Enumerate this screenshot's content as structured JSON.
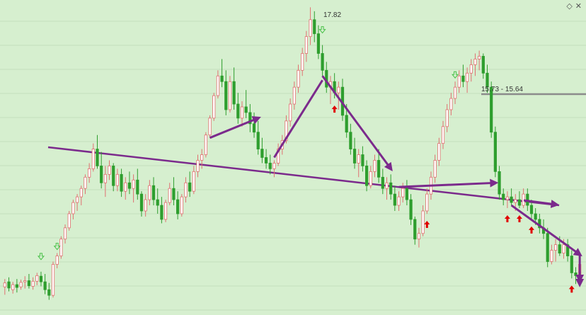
{
  "chart_data": {
    "type": "candlestick",
    "title": "",
    "xlabel": "",
    "ylabel": "",
    "grid": true,
    "colors": {
      "background": "#d6efcf",
      "grid": "#c4dfbd",
      "bullish_body": "#ffffff",
      "bullish_wick": "#e07070",
      "bearish": "#2e9e2e",
      "pattern_lines": "#7b2a8c",
      "level_line": "#8c8c8c",
      "signal_up_arrow": "#e00000",
      "signal_marker": "#48c048"
    },
    "annotations": {
      "high_label": "17.82",
      "range_label": "15.73 - 15.64"
    },
    "candles": [
      {
        "o": 12.85,
        "h": 12.99,
        "l": 12.71,
        "c": 12.92
      },
      {
        "o": 12.94,
        "h": 13.02,
        "l": 12.77,
        "c": 12.83
      },
      {
        "o": 12.8,
        "h": 12.94,
        "l": 12.73,
        "c": 12.89
      },
      {
        "o": 12.89,
        "h": 12.99,
        "l": 12.75,
        "c": 12.84
      },
      {
        "o": 12.85,
        "h": 12.98,
        "l": 12.8,
        "c": 12.93
      },
      {
        "o": 12.94,
        "h": 13.04,
        "l": 12.82,
        "c": 12.96
      },
      {
        "o": 12.96,
        "h": 13.08,
        "l": 12.82,
        "c": 12.87
      },
      {
        "o": 12.86,
        "h": 13.02,
        "l": 12.8,
        "c": 12.95
      },
      {
        "o": 12.95,
        "h": 13.1,
        "l": 12.88,
        "c": 13.05
      },
      {
        "o": 13.04,
        "h": 13.12,
        "l": 12.86,
        "c": 12.94
      },
      {
        "o": 12.94,
        "h": 13.08,
        "l": 12.72,
        "c": 12.8
      },
      {
        "o": 12.8,
        "h": 12.92,
        "l": 12.62,
        "c": 12.7
      },
      {
        "o": 12.7,
        "h": 13.3,
        "l": 12.66,
        "c": 13.25
      },
      {
        "o": 13.25,
        "h": 13.45,
        "l": 13.18,
        "c": 13.4
      },
      {
        "o": 13.4,
        "h": 13.75,
        "l": 13.35,
        "c": 13.7
      },
      {
        "o": 13.7,
        "h": 13.96,
        "l": 13.62,
        "c": 13.9
      },
      {
        "o": 13.9,
        "h": 14.2,
        "l": 13.85,
        "c": 14.15
      },
      {
        "o": 14.15,
        "h": 14.4,
        "l": 14.05,
        "c": 14.35
      },
      {
        "o": 14.35,
        "h": 14.5,
        "l": 14.2,
        "c": 14.45
      },
      {
        "o": 14.45,
        "h": 14.65,
        "l": 14.3,
        "c": 14.6
      },
      {
        "o": 14.6,
        "h": 14.85,
        "l": 14.5,
        "c": 14.8
      },
      {
        "o": 14.8,
        "h": 15.05,
        "l": 14.7,
        "c": 14.95
      },
      {
        "o": 14.95,
        "h": 15.4,
        "l": 14.9,
        "c": 15.3
      },
      {
        "o": 15.3,
        "h": 15.55,
        "l": 14.95,
        "c": 15.0
      },
      {
        "o": 15.0,
        "h": 15.25,
        "l": 14.6,
        "c": 14.7
      },
      {
        "o": 14.7,
        "h": 15.0,
        "l": 14.45,
        "c": 14.85
      },
      {
        "o": 14.85,
        "h": 15.1,
        "l": 14.75,
        "c": 15.0
      },
      {
        "o": 15.0,
        "h": 15.05,
        "l": 14.55,
        "c": 14.65
      },
      {
        "o": 14.65,
        "h": 14.95,
        "l": 14.55,
        "c": 14.85
      },
      {
        "o": 14.85,
        "h": 14.95,
        "l": 14.45,
        "c": 14.55
      },
      {
        "o": 14.55,
        "h": 14.8,
        "l": 14.4,
        "c": 14.7
      },
      {
        "o": 14.7,
        "h": 14.9,
        "l": 14.5,
        "c": 14.6
      },
      {
        "o": 14.6,
        "h": 14.85,
        "l": 14.35,
        "c": 14.75
      },
      {
        "o": 14.75,
        "h": 14.95,
        "l": 14.4,
        "c": 14.5
      },
      {
        "o": 14.5,
        "h": 14.55,
        "l": 14.1,
        "c": 14.2
      },
      {
        "o": 14.2,
        "h": 14.5,
        "l": 14.1,
        "c": 14.4
      },
      {
        "o": 14.4,
        "h": 14.75,
        "l": 14.3,
        "c": 14.65
      },
      {
        "o": 14.65,
        "h": 14.8,
        "l": 14.3,
        "c": 14.4
      },
      {
        "o": 14.4,
        "h": 14.6,
        "l": 14.15,
        "c": 14.3
      },
      {
        "o": 14.3,
        "h": 14.45,
        "l": 13.98,
        "c": 14.05
      },
      {
        "o": 14.05,
        "h": 14.4,
        "l": 14.0,
        "c": 14.35
      },
      {
        "o": 14.35,
        "h": 14.7,
        "l": 14.3,
        "c": 14.6
      },
      {
        "o": 14.6,
        "h": 14.8,
        "l": 14.3,
        "c": 14.4
      },
      {
        "o": 14.4,
        "h": 14.55,
        "l": 14.05,
        "c": 14.15
      },
      {
        "o": 14.15,
        "h": 14.5,
        "l": 14.1,
        "c": 14.45
      },
      {
        "o": 14.45,
        "h": 14.8,
        "l": 14.35,
        "c": 14.7
      },
      {
        "o": 14.7,
        "h": 14.9,
        "l": 14.45,
        "c": 14.55
      },
      {
        "o": 14.55,
        "h": 15.0,
        "l": 14.5,
        "c": 14.9
      },
      {
        "o": 14.9,
        "h": 15.2,
        "l": 14.8,
        "c": 15.1
      },
      {
        "o": 15.1,
        "h": 15.3,
        "l": 14.95,
        "c": 15.2
      },
      {
        "o": 15.2,
        "h": 15.6,
        "l": 15.15,
        "c": 15.55
      },
      {
        "o": 15.55,
        "h": 15.9,
        "l": 15.5,
        "c": 15.85
      },
      {
        "o": 15.85,
        "h": 16.3,
        "l": 15.8,
        "c": 16.25
      },
      {
        "o": 16.25,
        "h": 16.7,
        "l": 16.2,
        "c": 16.6
      },
      {
        "o": 16.6,
        "h": 16.9,
        "l": 16.4,
        "c": 16.5
      },
      {
        "o": 16.5,
        "h": 16.7,
        "l": 15.9,
        "c": 16.0
      },
      {
        "o": 16.0,
        "h": 16.6,
        "l": 15.95,
        "c": 16.5
      },
      {
        "o": 16.5,
        "h": 16.75,
        "l": 16.0,
        "c": 16.1
      },
      {
        "o": 16.1,
        "h": 16.3,
        "l": 15.75,
        "c": 15.85
      },
      {
        "o": 15.85,
        "h": 16.15,
        "l": 15.7,
        "c": 16.05
      },
      {
        "o": 16.05,
        "h": 16.35,
        "l": 15.85,
        "c": 15.95
      },
      {
        "o": 15.95,
        "h": 16.1,
        "l": 15.6,
        "c": 15.75
      },
      {
        "o": 15.75,
        "h": 15.95,
        "l": 15.5,
        "c": 15.6
      },
      {
        "o": 15.6,
        "h": 15.8,
        "l": 15.2,
        "c": 15.3
      },
      {
        "o": 15.3,
        "h": 15.5,
        "l": 15.05,
        "c": 15.15
      },
      {
        "o": 15.15,
        "h": 15.3,
        "l": 14.95,
        "c": 15.05
      },
      {
        "o": 15.05,
        "h": 15.2,
        "l": 14.85,
        "c": 14.95
      },
      {
        "o": 14.95,
        "h": 15.1,
        "l": 14.8,
        "c": 15.05
      },
      {
        "o": 15.05,
        "h": 15.4,
        "l": 15.0,
        "c": 15.3
      },
      {
        "o": 15.3,
        "h": 15.55,
        "l": 15.2,
        "c": 15.45
      },
      {
        "o": 15.45,
        "h": 15.9,
        "l": 15.4,
        "c": 15.8
      },
      {
        "o": 15.8,
        "h": 16.2,
        "l": 15.7,
        "c": 16.1
      },
      {
        "o": 16.1,
        "h": 16.5,
        "l": 16.0,
        "c": 16.4
      },
      {
        "o": 16.4,
        "h": 16.8,
        "l": 16.3,
        "c": 16.7
      },
      {
        "o": 16.7,
        "h": 17.1,
        "l": 16.6,
        "c": 17.0
      },
      {
        "o": 17.0,
        "h": 17.4,
        "l": 16.85,
        "c": 17.3
      },
      {
        "o": 17.3,
        "h": 17.82,
        "l": 17.15,
        "c": 17.6
      },
      {
        "o": 17.6,
        "h": 17.75,
        "l": 17.2,
        "c": 17.35
      },
      {
        "o": 17.35,
        "h": 17.5,
        "l": 16.9,
        "c": 17.0
      },
      {
        "o": 17.0,
        "h": 17.15,
        "l": 16.6,
        "c": 16.7
      },
      {
        "o": 16.7,
        "h": 16.85,
        "l": 16.3,
        "c": 16.4
      },
      {
        "o": 16.4,
        "h": 16.6,
        "l": 16.1,
        "c": 16.5
      },
      {
        "o": 16.5,
        "h": 16.65,
        "l": 16.2,
        "c": 16.3
      },
      {
        "o": 16.3,
        "h": 16.5,
        "l": 16.0,
        "c": 16.4
      },
      {
        "o": 16.4,
        "h": 16.55,
        "l": 15.8,
        "c": 15.9
      },
      {
        "o": 15.9,
        "h": 16.1,
        "l": 15.5,
        "c": 15.6
      },
      {
        "o": 15.6,
        "h": 15.75,
        "l": 15.2,
        "c": 15.3
      },
      {
        "o": 15.3,
        "h": 15.5,
        "l": 14.95,
        "c": 15.05
      },
      {
        "o": 15.05,
        "h": 15.3,
        "l": 14.8,
        "c": 15.2
      },
      {
        "o": 15.2,
        "h": 15.35,
        "l": 14.9,
        "c": 15.0
      },
      {
        "o": 15.0,
        "h": 15.1,
        "l": 14.55,
        "c": 14.65
      },
      {
        "o": 14.65,
        "h": 15.0,
        "l": 14.6,
        "c": 14.9
      },
      {
        "o": 14.9,
        "h": 15.2,
        "l": 14.8,
        "c": 15.1
      },
      {
        "o": 15.1,
        "h": 15.3,
        "l": 14.7,
        "c": 14.8
      },
      {
        "o": 14.8,
        "h": 14.95,
        "l": 14.5,
        "c": 14.6
      },
      {
        "o": 14.6,
        "h": 14.8,
        "l": 14.4,
        "c": 14.7
      },
      {
        "o": 14.7,
        "h": 14.85,
        "l": 14.4,
        "c": 14.5
      },
      {
        "o": 14.5,
        "h": 14.65,
        "l": 14.2,
        "c": 14.3
      },
      {
        "o": 14.3,
        "h": 14.55,
        "l": 14.2,
        "c": 14.45
      },
      {
        "o": 14.45,
        "h": 14.7,
        "l": 14.35,
        "c": 14.6
      },
      {
        "o": 14.6,
        "h": 14.75,
        "l": 14.3,
        "c": 14.4
      },
      {
        "o": 14.4,
        "h": 14.5,
        "l": 13.95,
        "c": 14.05
      },
      {
        "o": 14.05,
        "h": 14.1,
        "l": 13.6,
        "c": 13.7
      },
      {
        "o": 13.7,
        "h": 13.9,
        "l": 13.55,
        "c": 13.8
      },
      {
        "o": 13.8,
        "h": 14.3,
        "l": 13.75,
        "c": 14.2
      },
      {
        "o": 14.2,
        "h": 14.6,
        "l": 14.15,
        "c": 14.5
      },
      {
        "o": 14.5,
        "h": 14.9,
        "l": 14.4,
        "c": 14.8
      },
      {
        "o": 14.8,
        "h": 15.2,
        "l": 14.7,
        "c": 15.1
      },
      {
        "o": 15.1,
        "h": 15.5,
        "l": 15.0,
        "c": 15.4
      },
      {
        "o": 15.4,
        "h": 15.8,
        "l": 15.3,
        "c": 15.7
      },
      {
        "o": 15.7,
        "h": 16.1,
        "l": 15.6,
        "c": 16.0
      },
      {
        "o": 16.0,
        "h": 16.3,
        "l": 15.9,
        "c": 16.2
      },
      {
        "o": 16.2,
        "h": 16.5,
        "l": 16.1,
        "c": 16.4
      },
      {
        "o": 16.4,
        "h": 16.7,
        "l": 16.3,
        "c": 16.6
      },
      {
        "o": 16.6,
        "h": 16.8,
        "l": 16.4,
        "c": 16.5
      },
      {
        "o": 16.5,
        "h": 16.75,
        "l": 16.3,
        "c": 16.65
      },
      {
        "o": 16.65,
        "h": 16.9,
        "l": 16.5,
        "c": 16.8
      },
      {
        "o": 16.8,
        "h": 17.0,
        "l": 16.6,
        "c": 16.9
      },
      {
        "o": 16.9,
        "h": 17.05,
        "l": 16.7,
        "c": 16.95
      },
      {
        "o": 16.95,
        "h": 17.0,
        "l": 16.55,
        "c": 16.65
      },
      {
        "o": 16.65,
        "h": 16.8,
        "l": 16.3,
        "c": 16.4
      },
      {
        "o": 16.4,
        "h": 16.5,
        "l": 15.5,
        "c": 15.6
      },
      {
        "o": 15.6,
        "h": 15.7,
        "l": 14.8,
        "c": 14.9
      },
      {
        "o": 14.9,
        "h": 15.0,
        "l": 14.4,
        "c": 14.5
      },
      {
        "o": 14.5,
        "h": 14.6,
        "l": 14.3,
        "c": 14.4
      },
      {
        "o": 14.4,
        "h": 14.55,
        "l": 14.25,
        "c": 14.45
      },
      {
        "o": 14.45,
        "h": 14.6,
        "l": 14.3,
        "c": 14.35
      },
      {
        "o": 14.35,
        "h": 14.5,
        "l": 14.2,
        "c": 14.4
      },
      {
        "o": 14.4,
        "h": 14.55,
        "l": 14.25,
        "c": 14.3
      },
      {
        "o": 14.3,
        "h": 14.6,
        "l": 14.25,
        "c": 14.5
      },
      {
        "o": 14.5,
        "h": 14.6,
        "l": 14.2,
        "c": 14.3
      },
      {
        "o": 14.3,
        "h": 14.4,
        "l": 14.05,
        "c": 14.15
      },
      {
        "o": 14.15,
        "h": 14.25,
        "l": 13.95,
        "c": 14.05
      },
      {
        "o": 14.05,
        "h": 14.15,
        "l": 13.8,
        "c": 13.9
      },
      {
        "o": 13.9,
        "h": 14.05,
        "l": 13.7,
        "c": 13.8
      },
      {
        "o": 13.8,
        "h": 13.9,
        "l": 13.2,
        "c": 13.3
      },
      {
        "o": 13.3,
        "h": 13.6,
        "l": 13.25,
        "c": 13.5
      },
      {
        "o": 13.5,
        "h": 13.7,
        "l": 13.3,
        "c": 13.6
      },
      {
        "o": 13.6,
        "h": 13.75,
        "l": 13.4,
        "c": 13.45
      },
      {
        "o": 13.45,
        "h": 13.7,
        "l": 13.35,
        "c": 13.6
      },
      {
        "o": 13.6,
        "h": 13.7,
        "l": 13.3,
        "c": 13.4
      },
      {
        "o": 13.4,
        "h": 13.5,
        "l": 13.0,
        "c": 13.1
      },
      {
        "o": 13.1,
        "h": 13.2,
        "l": 12.9,
        "c": 13.05
      },
      {
        "o": 13.05,
        "h": 13.35,
        "l": 13.0,
        "c": 13.25
      }
    ],
    "signals": {
      "up_arrows": [
        82,
        105,
        125,
        128,
        131,
        141
      ],
      "top_markers": [
        13,
        112
      ],
      "bottom_markers": [
        9,
        79
      ]
    }
  }
}
